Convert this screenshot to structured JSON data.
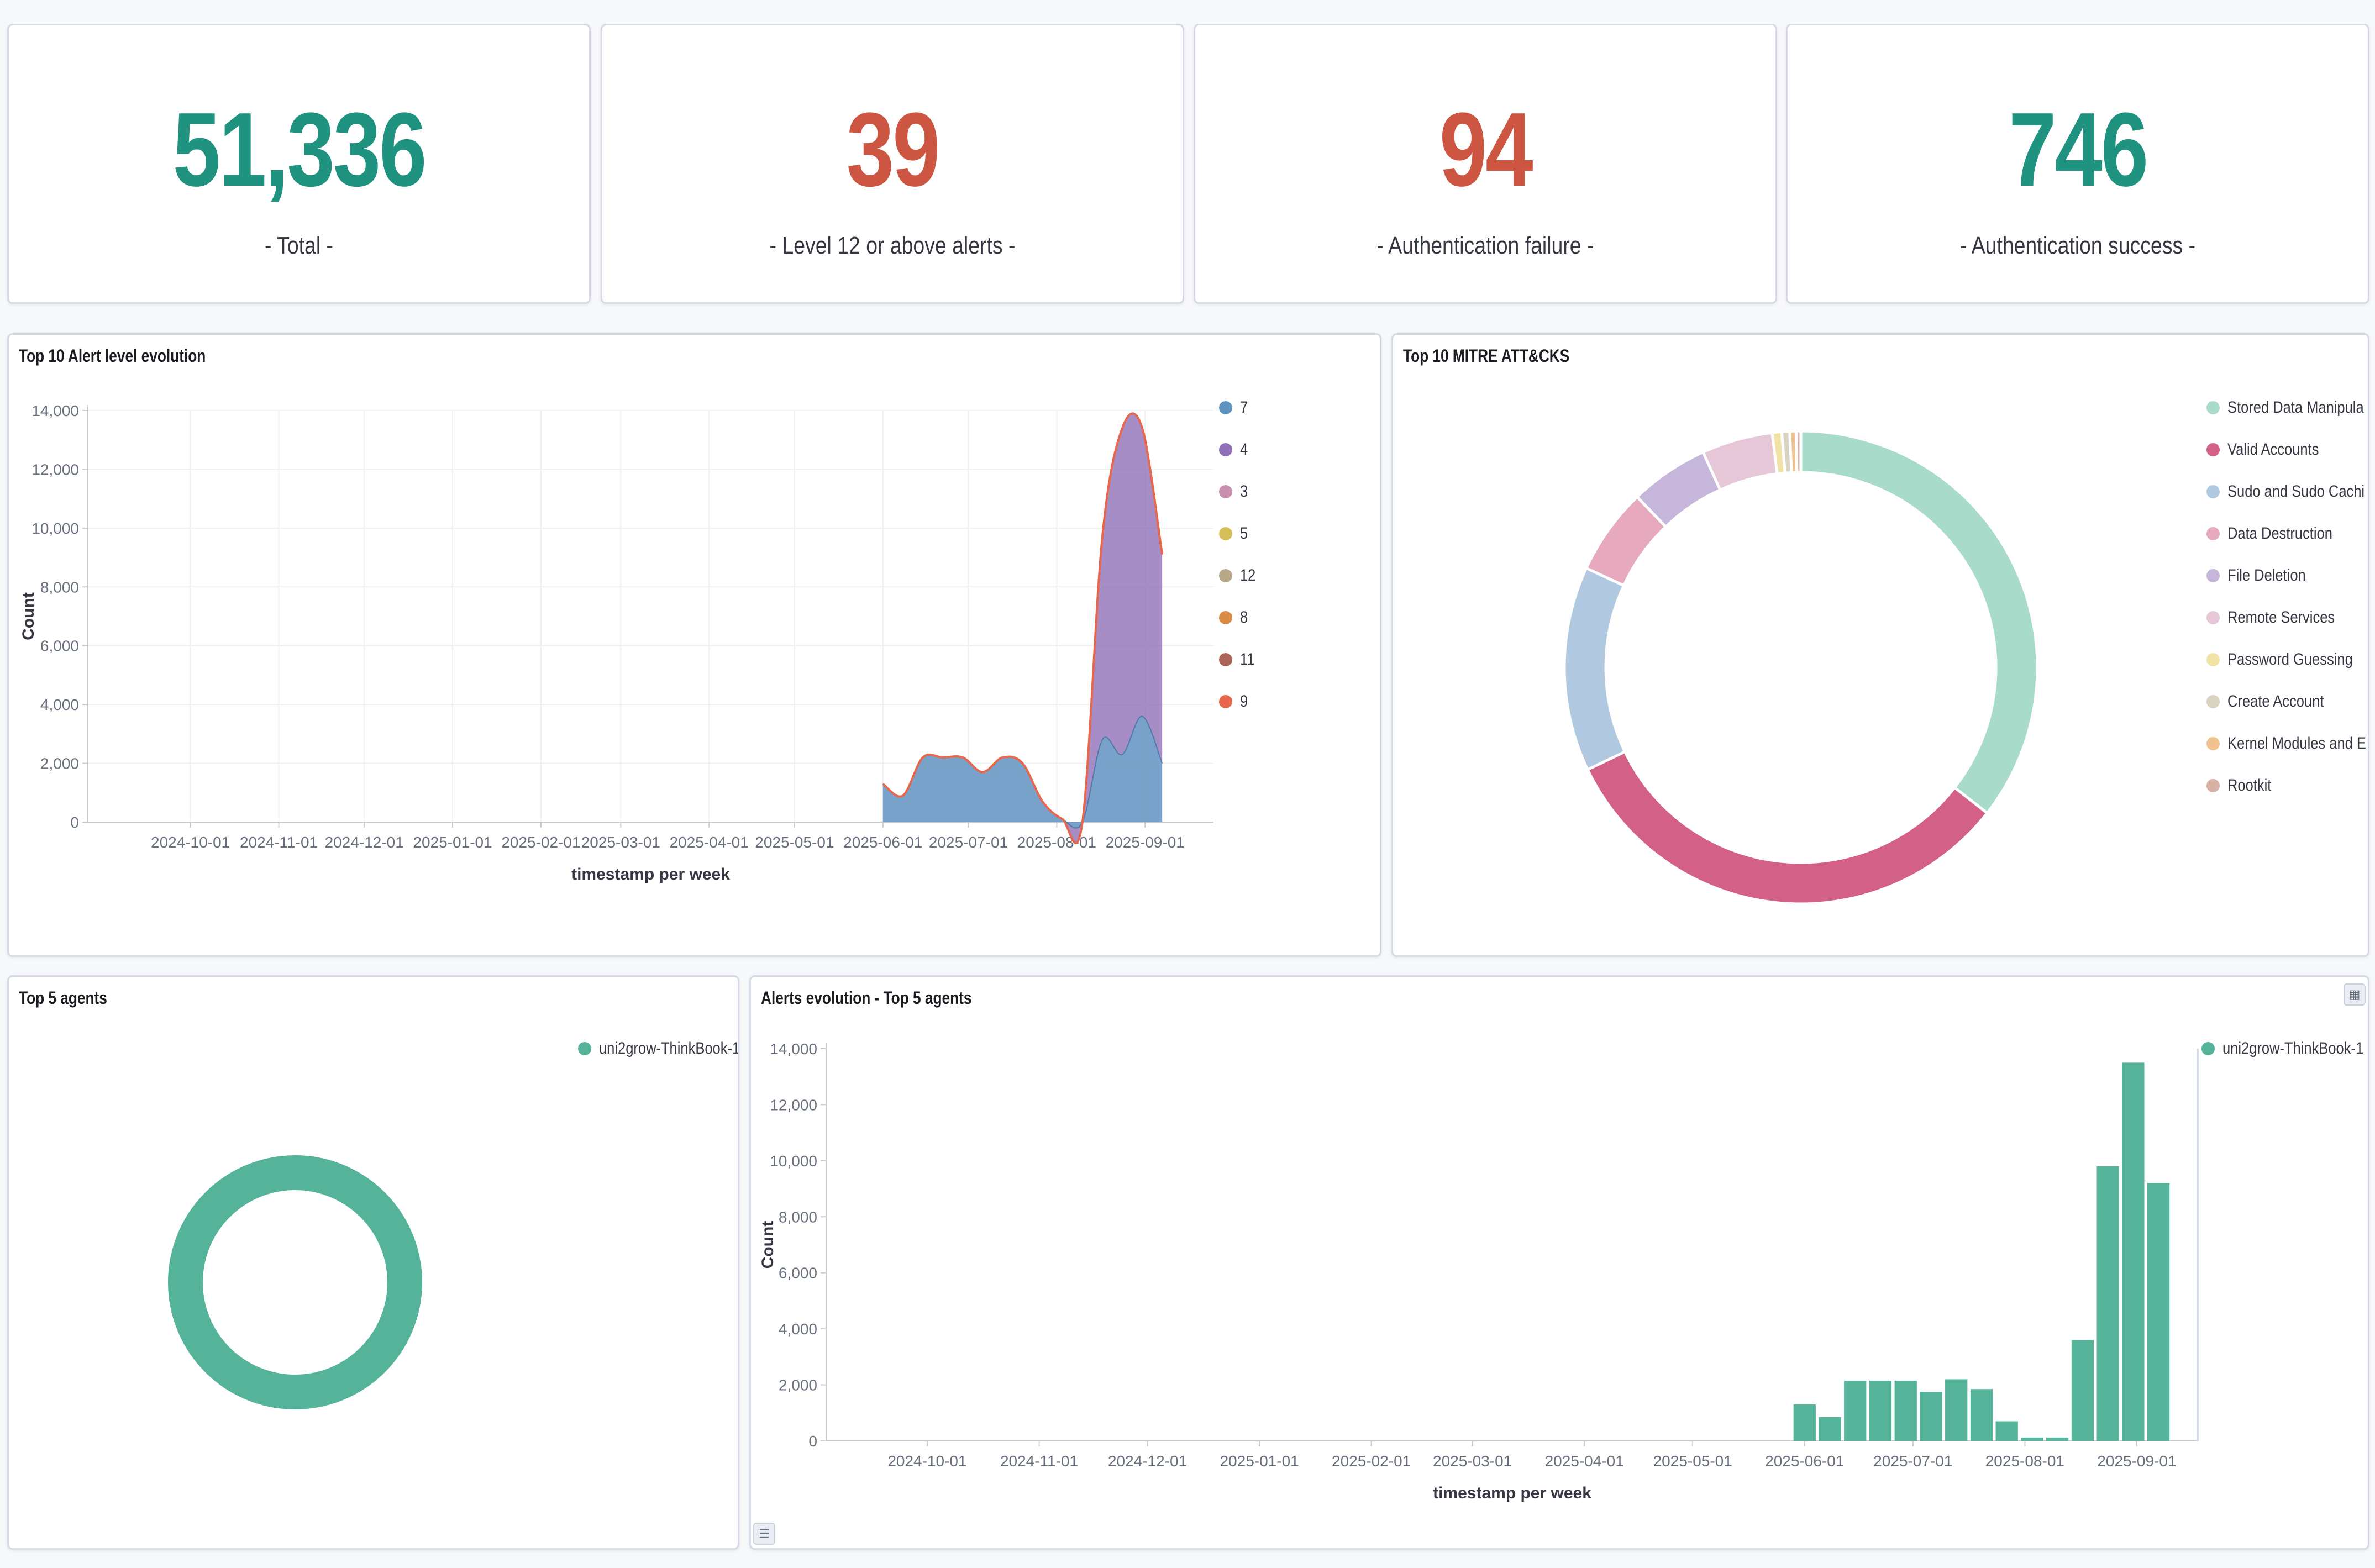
{
  "metrics": [
    {
      "value": "51,336",
      "label": "- Total -",
      "color": "#209280"
    },
    {
      "value": "39",
      "label": "- Level 12 or above alerts -",
      "color": "#cc5642"
    },
    {
      "value": "94",
      "label": "- Authentication failure -",
      "color": "#cc5642"
    },
    {
      "value": "746",
      "label": "- Authentication success -",
      "color": "#209280"
    }
  ],
  "panels": {
    "alert_level": {
      "title": "Top 10 Alert level evolution"
    },
    "mitre": {
      "title": "Top 10 MITRE ATT&CKS"
    },
    "agents": {
      "title": "Top 5 agents"
    },
    "agents_evolution": {
      "title": "Alerts evolution - Top 5 agents"
    }
  },
  "chart_data": [
    {
      "id": "alert_level",
      "type": "area",
      "title": "Top 10 Alert level evolution",
      "xlabel": "timestamp per week",
      "ylabel": "Count",
      "ylim": [
        0,
        14000
      ],
      "yticks": [
        "0",
        "2,000",
        "4,000",
        "6,000",
        "8,000",
        "10,000",
        "12,000",
        "14,000"
      ],
      "xticks": [
        "2024-10-01",
        "2024-11-01",
        "2024-12-01",
        "2025-01-01",
        "2025-02-01",
        "2025-03-01",
        "2025-04-01",
        "2025-05-01",
        "2025-06-01",
        "2025-07-01",
        "2025-08-01",
        "2025-09-01"
      ],
      "legend": [
        "7",
        "4",
        "3",
        "5",
        "12",
        "8",
        "11",
        "9"
      ],
      "legend_colors": [
        "#6092c0",
        "#9170b8",
        "#ca8eae",
        "#d6bf57",
        "#b9a888",
        "#da8b45",
        "#aa6556",
        "#e7664c"
      ],
      "grid": true,
      "legend_position": "right",
      "weeks": [
        "2025-06-01",
        "2025-06-08",
        "2025-06-15",
        "2025-06-22",
        "2025-06-29",
        "2025-07-06",
        "2025-07-13",
        "2025-07-20",
        "2025-07-27",
        "2025-08-03",
        "2025-08-10",
        "2025-08-17",
        "2025-08-24",
        "2025-08-31",
        "2025-09-07"
      ],
      "series": [
        {
          "name": "7",
          "values": [
            1300,
            900,
            2200,
            2200,
            2200,
            1700,
            2200,
            2000,
            700,
            100,
            0,
            2800,
            2300,
            3600,
            2000
          ]
        },
        {
          "name": "4",
          "values": [
            0,
            0,
            0,
            0,
            0,
            0,
            0,
            0,
            0,
            0,
            0,
            6900,
            11100,
            9800,
            7100
          ]
        }
      ]
    },
    {
      "id": "mitre",
      "type": "pie",
      "title": "Top 10 MITRE ATT&CKS",
      "donut": true,
      "legend_position": "right",
      "slices": [
        {
          "label": "Stored Data Manipula",
          "value": 33,
          "color": "#a9dbcb"
        },
        {
          "label": "Valid Accounts",
          "value": 30,
          "color": "#d36086"
        },
        {
          "label": "Sudo and Sudo Cachi",
          "value": 13,
          "color": "#b0c9e0"
        },
        {
          "label": "Data Destruction",
          "value": 5.5,
          "color": "#e7a9bd"
        },
        {
          "label": "File Deletion",
          "value": 5,
          "color": "#c6b6db"
        },
        {
          "label": "Remote Services",
          "value": 4.5,
          "color": "#e5c7d7"
        },
        {
          "label": "Password Guessing",
          "value": 0.6,
          "color": "#f1e3a6"
        },
        {
          "label": "Create Account",
          "value": 0.5,
          "color": "#d9d3c2"
        },
        {
          "label": "Kernel Modules and E:",
          "value": 0.4,
          "color": "#f0c28f"
        },
        {
          "label": "Rootkit",
          "value": 0.3,
          "color": "#d7b0a6"
        }
      ]
    },
    {
      "id": "agents",
      "type": "pie",
      "title": "Top 5 agents",
      "donut": true,
      "legend_position": "top-right",
      "slices": [
        {
          "label": "uni2grow-ThinkBook-1",
          "value": 100,
          "color": "#54b399"
        }
      ]
    },
    {
      "id": "agents_evolution",
      "type": "bar",
      "title": "Alerts evolution - Top 5 agents",
      "xlabel": "timestamp per week",
      "ylabel": "Count",
      "ylim": [
        0,
        14000
      ],
      "yticks": [
        "0",
        "2,000",
        "4,000",
        "6,000",
        "8,000",
        "10,000",
        "12,000",
        "14,000"
      ],
      "xticks": [
        "2024-10-01",
        "2024-11-01",
        "2024-12-01",
        "2025-01-01",
        "2025-02-01",
        "2025-03-01",
        "2025-04-01",
        "2025-05-01",
        "2025-06-01",
        "2025-07-01",
        "2025-08-01",
        "2025-09-01"
      ],
      "legend": [
        "uni2grow-ThinkBook-1"
      ],
      "legend_colors": [
        "#54b399"
      ],
      "grid": false,
      "legend_position": "right",
      "categories": [
        "2025-06-01",
        "2025-06-08",
        "2025-06-15",
        "2025-06-22",
        "2025-06-29",
        "2025-07-06",
        "2025-07-13",
        "2025-07-20",
        "2025-07-27",
        "2025-08-03",
        "2025-08-10",
        "2025-08-17",
        "2025-08-24",
        "2025-08-31",
        "2025-09-07"
      ],
      "series": [
        {
          "name": "uni2grow-ThinkBook-1",
          "values": [
            1300,
            850,
            2150,
            2150,
            2150,
            1750,
            2200,
            1850,
            700,
            120,
            120,
            3600,
            9800,
            13500,
            9200
          ]
        }
      ]
    }
  ]
}
